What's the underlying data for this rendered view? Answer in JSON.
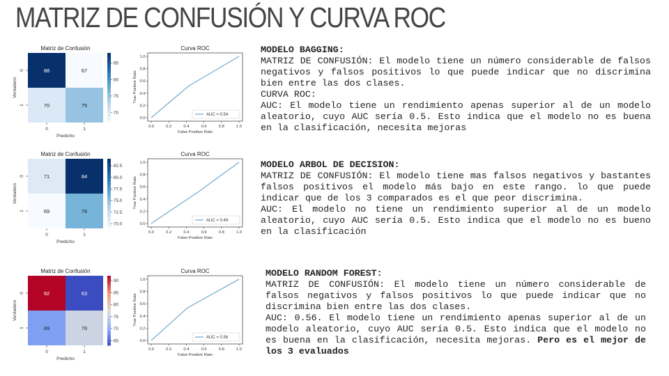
{
  "title": "MATRIZ DE CONFUSIÓN Y CURVA ROC",
  "chart_data": [
    {
      "type": "heatmap",
      "title": "Matriz de Confusión",
      "xlabel": "Predicho",
      "ylabel": "Verdadero",
      "x_tick_labels": [
        "0",
        "1"
      ],
      "y_tick_labels": [
        "0",
        "1"
      ],
      "values": [
        [
          88,
          67
        ],
        [
          70,
          75
        ]
      ],
      "colormap": "Blues",
      "color_range": [
        67,
        88
      ],
      "colorbar_ticks": [
        "70",
        "75",
        "80",
        "85"
      ]
    },
    {
      "type": "line",
      "title": "Curva ROC",
      "xlabel": "False Positive Rate",
      "ylabel": "True Positive Rate",
      "xlim": [
        0,
        1
      ],
      "ylim": [
        0,
        1
      ],
      "x_ticks": [
        "0.0",
        "0.2",
        "0.4",
        "0.6",
        "0.8",
        "1.0"
      ],
      "y_ticks": [
        "0.0",
        "0.2",
        "0.4",
        "0.6",
        "0.8",
        "1.0"
      ],
      "series": [
        {
          "name": "AUC = 0.54",
          "x": [
            0,
            0.43,
            1
          ],
          "y": [
            0,
            0.52,
            1
          ],
          "color": "#7aaed0"
        }
      ],
      "legend_position": "lower-right"
    },
    {
      "type": "heatmap",
      "title": "Matriz de Confusión",
      "xlabel": "Predicho",
      "ylabel": "Verdadero",
      "x_tick_labels": [
        "0",
        "1"
      ],
      "y_tick_labels": [
        "0",
        "1"
      ],
      "values": [
        [
          71,
          84
        ],
        [
          69,
          76
        ]
      ],
      "colormap": "Blues",
      "color_range": [
        69,
        84
      ],
      "colorbar_ticks": [
        "70.0",
        "72.5",
        "75.0",
        "77.5",
        "80.0",
        "82.5"
      ]
    },
    {
      "type": "line",
      "title": "Curva ROC",
      "xlabel": "False Positive Rate",
      "ylabel": "True Positive Rate",
      "xlim": [
        0,
        1
      ],
      "ylim": [
        0,
        1
      ],
      "x_ticks": [
        "0.0",
        "0.2",
        "0.4",
        "0.6",
        "0.8",
        "1.0"
      ],
      "y_ticks": [
        "0.0",
        "0.2",
        "0.4",
        "0.6",
        "0.8",
        "1.0"
      ],
      "series": [
        {
          "name": "AUC = 0.49",
          "x": [
            0,
            0.54,
            1
          ],
          "y": [
            0,
            0.52,
            1
          ],
          "color": "#7aaed0"
        }
      ],
      "legend_position": "lower-right"
    },
    {
      "type": "heatmap",
      "title": "Matriz de Confusión",
      "xlabel": "Predicho",
      "ylabel": "Verdadero",
      "x_tick_labels": [
        "0",
        "1"
      ],
      "y_tick_labels": [
        "0",
        "1"
      ],
      "values": [
        [
          92,
          63
        ],
        [
          69,
          76
        ]
      ],
      "colormap": "coolwarm",
      "color_range": [
        63,
        92
      ],
      "colorbar_ticks": [
        "65",
        "70",
        "75",
        "80",
        "85",
        "90"
      ]
    },
    {
      "type": "line",
      "title": "Curva ROC",
      "xlabel": "False Positive Rate",
      "ylabel": "True Positive Rate",
      "xlim": [
        0,
        1
      ],
      "ylim": [
        0,
        1
      ],
      "x_ticks": [
        "0.0",
        "0.2",
        "0.4",
        "0.6",
        "0.8",
        "1.0"
      ],
      "y_ticks": [
        "0.0",
        "0.2",
        "0.4",
        "0.6",
        "0.8",
        "1.0"
      ],
      "series": [
        {
          "name": "AUC = 0.56",
          "x": [
            0,
            0.41,
            1
          ],
          "y": [
            0,
            0.53,
            1
          ],
          "color": "#7aaed0"
        }
      ],
      "legend_position": "lower-right"
    }
  ],
  "sections": [
    {
      "heading": "MODELO BAGGING:",
      "lines": [
        "MATRIZ DE CONFUSIÓN: El modelo tiene un número considerable de falsos negativos y falsos positivos lo que puede indicar que no discrimina bien entre las dos clases.",
        "CURVA ROC:",
        "AUC: El modelo tiene un rendimiento apenas superior al de un modelo aleatorio, cuyo AUC sería 0.5. Esto indica que el modelo no es buena en la clasificación, necesita mejoras"
      ]
    },
    {
      "heading": "MODELO ARBOL DE DECISION:",
      "lines": [
        "MATRIZ DE CONFUSIÓN: El modelo tiene mas  falsos negativos y bastantes falsos positivos el modelo más bajo en este rango. lo que puede indicar que de los 3 comparados es el que peor discrimina.",
        "AUC: El modelo no tiene un rendimiento superior al de un modelo aleatorio, cuyo AUC sería 0.5. Esto indica que el modelo no es bueno en la clasificación"
      ]
    },
    {
      "heading": "MODELO RANDOM FOREST:",
      "lines": [
        "MATRIZ DE CONFUSIÓN: El modelo tiene un número considerable de falsos negativos y falsos positivos lo que puede indicar que no discrimina bien entre las dos clases.",
        "AUC: 0.56. El modelo tiene un rendimiento apenas superior al de un modelo aleatorio, cuyo AUC sería 0.5. Esto indica que el modelo no es buena en la clasificación, necesita mejoras."
      ],
      "emphasis": "Pero es el mejor de los 3 evaluados"
    }
  ]
}
